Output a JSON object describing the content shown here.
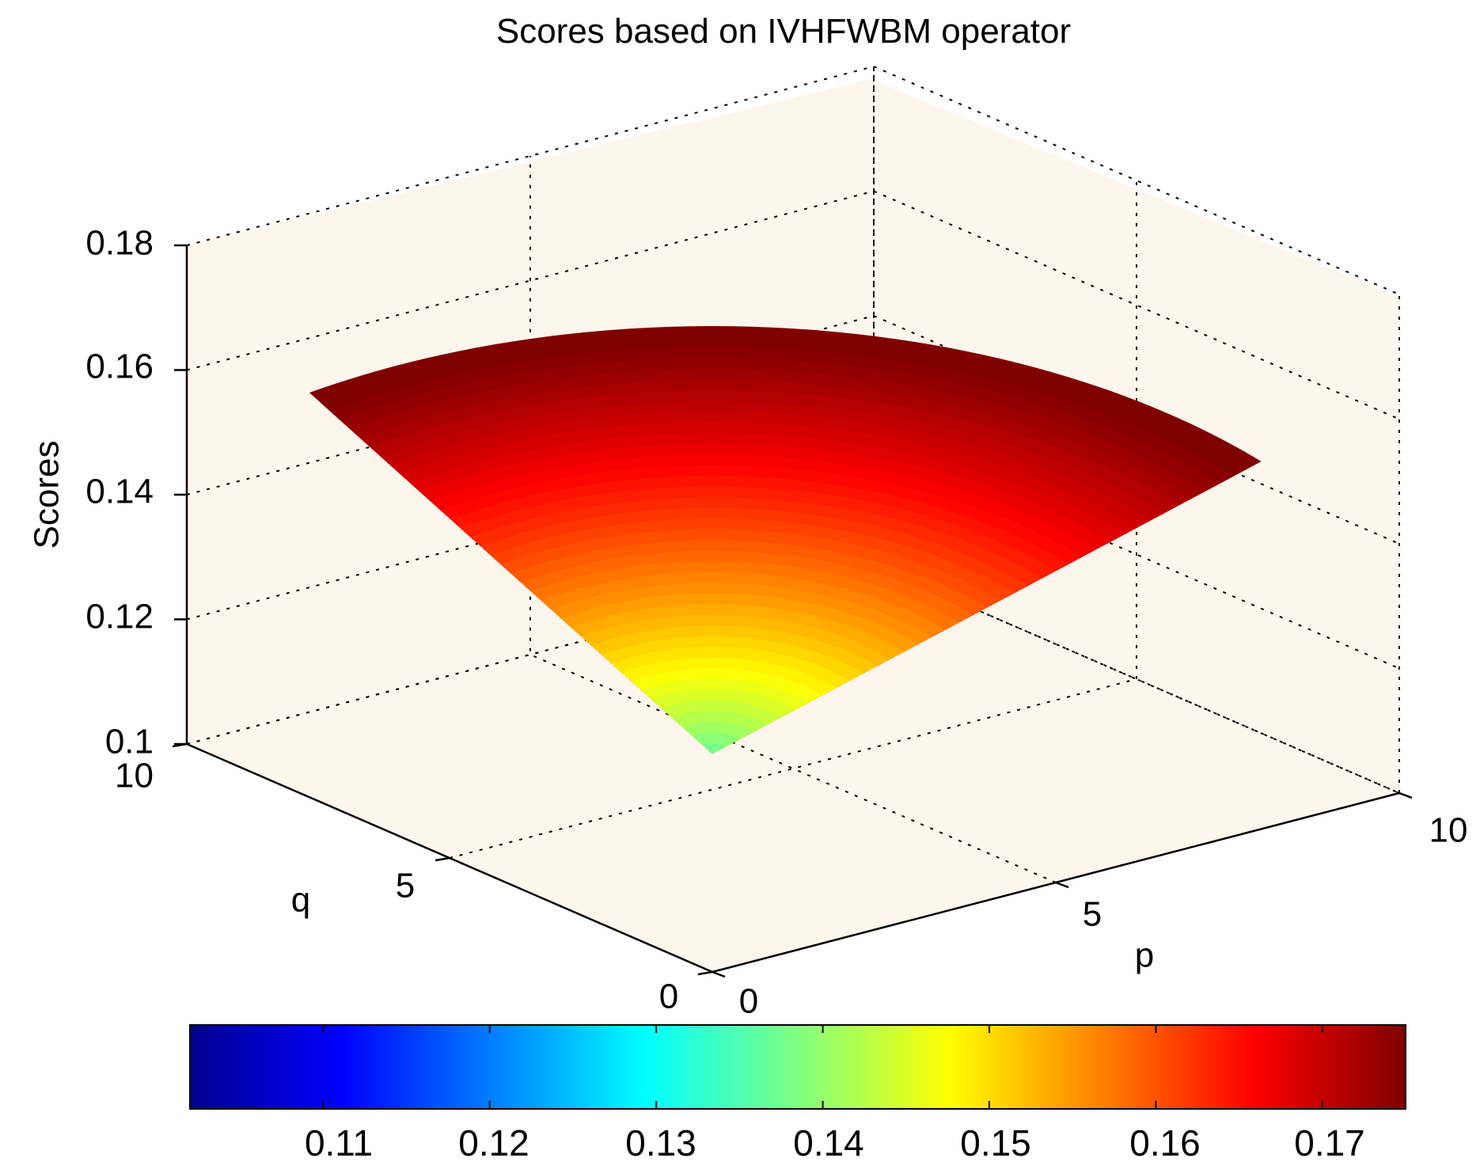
{
  "chart_data": {
    "type": "surface",
    "title": "Scores based on IVHFWBM operator",
    "xlabel": "p",
    "ylabel": "q",
    "zlabel": "Scores",
    "xlim": [
      0,
      10
    ],
    "ylim": [
      0,
      10
    ],
    "zlim": [
      0.1,
      0.18
    ],
    "xticks": [
      "0",
      "5",
      "10"
    ],
    "yticks": [
      "0",
      "5",
      "10"
    ],
    "zticks": [
      "0.1",
      "0.12",
      "0.14",
      "0.16",
      "0.18"
    ],
    "grid": true,
    "colormap": "jet",
    "surface_samples": [
      {
        "p": 0,
        "q": 0,
        "score": 0.135
      },
      {
        "p": 10,
        "q": 0,
        "score": 0.165
      },
      {
        "p": 0,
        "q": 10,
        "score": 0.174
      },
      {
        "p": 10,
        "q": 10,
        "score": 0.173
      },
      {
        "p": 5,
        "q": 5,
        "score": 0.163
      }
    ],
    "colorbar": {
      "location": "south",
      "range": [
        0.102,
        0.175
      ],
      "ticks": [
        "0.11",
        "0.12",
        "0.13",
        "0.14",
        "0.15",
        "0.16",
        "0.17"
      ]
    }
  },
  "colors": {
    "axes_background": "#fdf6ec",
    "figure_background": "#ffffff",
    "grid": "#000000"
  }
}
